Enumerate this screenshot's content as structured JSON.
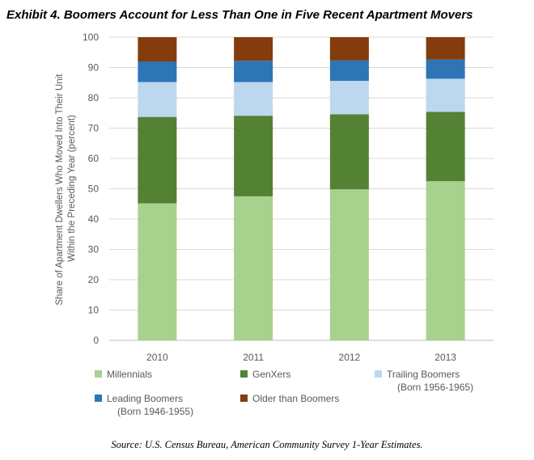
{
  "header": {
    "title": "Exhibit 4. Boomers Account for Less Than One in Five Recent Apartment Movers"
  },
  "footer": {
    "source": "Source: U.S. Census Bureau, American Community Survey 1-Year Estimates."
  },
  "chart_data": {
    "type": "bar",
    "stacked": true,
    "title": "Exhibit 4. Boomers Account for Less Than One in Five Recent Apartment Movers",
    "xlabel": "",
    "ylabel_lines": [
      "Share of Apartment Dwellers Who Moved Into Their Unit",
      "Within the Preceding Year (percent)"
    ],
    "ylim": [
      0,
      100
    ],
    "yticks": [
      0,
      10,
      20,
      30,
      40,
      50,
      60,
      70,
      80,
      90,
      100
    ],
    "grid": true,
    "categories": [
      "2010",
      "2011",
      "2012",
      "2013"
    ],
    "series": [
      {
        "name": "Millennials",
        "legend_lines": [
          "Millennials"
        ],
        "color": "#a9d18e",
        "values": [
          45.2,
          47.5,
          49.8,
          52.5
        ]
      },
      {
        "name": "GenXers",
        "legend_lines": [
          "GenXers"
        ],
        "color": "#548235",
        "values": [
          28.5,
          26.6,
          24.8,
          22.9
        ]
      },
      {
        "name": "Trailing Boomers (Born 1956-1965)",
        "legend_lines": [
          "Trailing Boomers",
          "(Born 1956-1965)"
        ],
        "color": "#bdd7ee",
        "values": [
          11.5,
          11.1,
          11.0,
          10.9
        ]
      },
      {
        "name": "Leading Boomers (Born 1946-1955)",
        "legend_lines": [
          "Leading Boomers",
          "(Born 1946-1955)"
        ],
        "color": "#2e75b6",
        "values": [
          6.8,
          7.0,
          6.7,
          6.3
        ]
      },
      {
        "name": "Older than Boomers",
        "legend_lines": [
          "Older than Boomers"
        ],
        "color": "#843c0c",
        "values": [
          8.0,
          7.8,
          7.7,
          7.4
        ]
      }
    ],
    "legend_position": "bottom"
  }
}
